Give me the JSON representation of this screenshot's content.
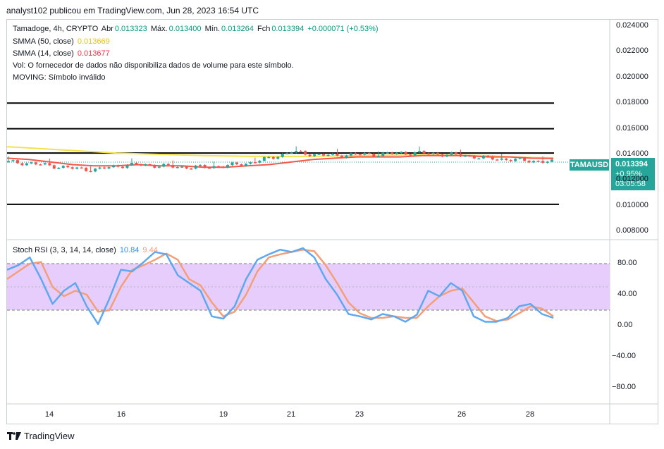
{
  "caption": "analyst102 publicou em TradingView.com, Jun 28, 2023 16:54 UTC",
  "legend": {
    "symbol_line": {
      "name": "Tamadoge, 4h, CRYPTO",
      "open_label": "Abr",
      "open": "0.013323",
      "high_label": "Máx.",
      "high": "0.013400",
      "low_label": "Mín.",
      "low": "0.013264",
      "close_label": "Fch",
      "close": "0.013394",
      "change": "+0.000071 (+0.53%)"
    },
    "smma50_label": "SMMA (50, close)",
    "smma50_value": "0.013669",
    "smma14_label": "SMMA (14, close)",
    "smma14_value": "0.013677",
    "vol_note": "Vol: O fornecedor de dados não disponibiliza dados de volume para este símbolo.",
    "moving_note": "MOVING: Símbolo inválido",
    "stoch_label": "Stoch RSI (3, 3, 14, 14, close)",
    "stoch_k": "10.84",
    "stoch_d": "9.44"
  },
  "price_tag": {
    "symbol": "TAMAUSD",
    "price": "0.013394",
    "change": "+0.95%",
    "countdown": "03:05:58"
  },
  "colors": {
    "up": "#26a69a",
    "down": "#ef5350",
    "smma50": "#f5e14a",
    "smma14": "#f2594b",
    "stoch_k": "#5fa8ef",
    "stoch_d": "#f29f7a",
    "band": "#e6cdfb"
  },
  "footer": {
    "brand": "TradingView",
    "logo_icon": "tradingview-logo-icon"
  },
  "chart_data": [
    {
      "type": "candlestick",
      "title": "",
      "y_axis_ticks": [
        "0.024000",
        "0.022000",
        "0.020000",
        "0.018000",
        "0.016000",
        "0.014000",
        "0.012000",
        "0.010000",
        "0.008000"
      ],
      "ylim": [
        0.0074,
        0.0245
      ],
      "x_axis_ticks": [
        "14",
        "16",
        "19",
        "21",
        "23",
        "26",
        "28"
      ],
      "horizontal_lines": [
        0.018,
        0.016,
        0.0141,
        0.0101
      ],
      "smma50": [
        0.0146,
        0.0145,
        0.0144,
        0.0143,
        0.0142,
        0.0141,
        0.01405,
        0.014,
        0.01395,
        0.0139,
        0.01387,
        0.01385,
        0.01384,
        0.01384,
        0.01385,
        0.01387,
        0.0139,
        0.01392,
        0.01394,
        0.01395,
        0.01394,
        0.01392,
        0.0139,
        0.0138,
        0.01375,
        0.01373
      ],
      "smma14": [
        0.0137,
        0.0136,
        0.0134,
        0.0132,
        0.0131,
        0.0131,
        0.0132,
        0.0131,
        0.0131,
        0.013,
        0.013,
        0.0131,
        0.0132,
        0.0134,
        0.0136,
        0.0137,
        0.0138,
        0.0138,
        0.0138,
        0.0139,
        0.0139,
        0.0139,
        0.0138,
        0.0138,
        0.0137,
        0.01368
      ],
      "close_series": [
        0.0134,
        0.0133,
        0.0131,
        0.0129,
        0.0128,
        0.0131,
        0.0132,
        0.0131,
        0.013,
        0.013,
        0.0131,
        0.0133,
        0.0137,
        0.0142,
        0.014,
        0.0139,
        0.014,
        0.014,
        0.0141,
        0.0141,
        0.014,
        0.0139,
        0.0137,
        0.0136,
        0.0135,
        0.013394
      ]
    },
    {
      "type": "line",
      "title": "",
      "series_names": [
        "%K",
        "%D"
      ],
      "y_axis_ticks": [
        "80.00",
        "40.00",
        "0.00",
        "−40.00",
        "−80.00"
      ],
      "ylim": [
        -100,
        110
      ],
      "band": [
        20,
        80
      ],
      "midline": 50,
      "k": [
        72,
        78,
        88,
        60,
        28,
        45,
        55,
        25,
        2,
        35,
        72,
        70,
        82,
        95,
        92,
        65,
        55,
        45,
        12,
        9,
        25,
        60,
        85,
        92,
        98,
        95,
        100,
        88,
        60,
        40,
        15,
        12,
        8,
        15,
        12,
        5,
        14,
        45,
        38,
        55,
        45,
        12,
        5,
        5,
        10,
        25,
        28,
        15,
        10
      ],
      "d": [
        60,
        70,
        80,
        82,
        50,
        38,
        45,
        40,
        18,
        20,
        50,
        72,
        78,
        85,
        93,
        85,
        60,
        52,
        30,
        12,
        18,
        40,
        70,
        88,
        92,
        95,
        98,
        96,
        78,
        55,
        30,
        16,
        10,
        10,
        12,
        10,
        10,
        25,
        38,
        45,
        48,
        30,
        12,
        6,
        8,
        16,
        25,
        22,
        12
      ]
    }
  ]
}
